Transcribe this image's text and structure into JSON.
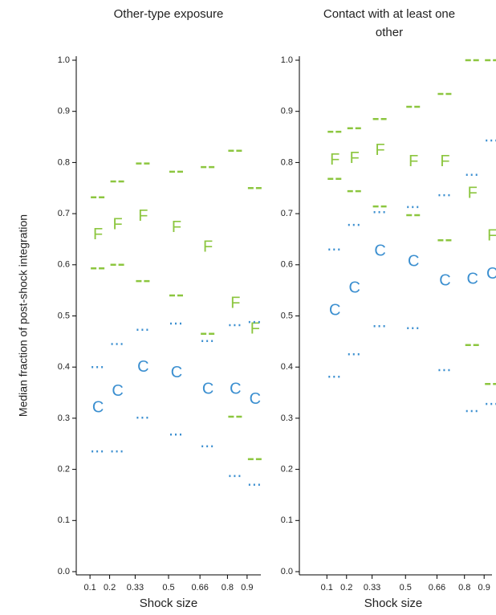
{
  "chart_data": [
    {
      "type": "scatter",
      "title": "Other-type exposure",
      "xlabel": "Shock size",
      "ylabel": "Median fraction of post-shock integration",
      "x": [
        0.1,
        0.2,
        0.33,
        0.5,
        0.66,
        0.8,
        0.9
      ],
      "xlim": [
        0.03,
        0.97
      ],
      "xticks": [
        0.1,
        0.2,
        0.33,
        0.5,
        0.66,
        0.8,
        0.9
      ],
      "ylim": [
        0,
        1.0
      ],
      "yticks": [
        {
          "value": 0,
          "label": "0.0"
        },
        0.1,
        0.2,
        0.3,
        0.4,
        0.5,
        0.6,
        0.7,
        0.8,
        0.9,
        {
          "value": 1.0,
          "label": "1.0"
        }
      ],
      "series": [
        {
          "marker": "F",
          "color": "#8cc63f",
          "values": [
            0.658,
            0.678,
            0.694,
            0.672,
            0.634,
            0.524,
            0.474
          ]
        },
        {
          "marker_style": "dashes",
          "color": "#8cc63f",
          "values": [
            0.732,
            0.763,
            0.798,
            0.782,
            0.791,
            0.823,
            0.75
          ]
        },
        {
          "marker_style": "dashes",
          "color": "#8cc63f",
          "values": [
            0.593,
            0.6,
            0.568,
            0.54,
            0.465,
            0.303,
            0.22
          ]
        },
        {
          "marker": "C",
          "color": "#3b8fd0",
          "values": [
            0.32,
            0.352,
            0.399,
            0.388,
            0.356,
            0.356,
            0.336
          ]
        },
        {
          "marker_style": "dots",
          "color": "#3b8fd0",
          "values": [
            0.4,
            0.445,
            0.473,
            0.485,
            0.451,
            0.482,
            0.488
          ]
        },
        {
          "marker_style": "dots",
          "color": "#3b8fd0",
          "values": [
            0.235,
            0.235,
            0.301,
            0.268,
            0.245,
            0.187,
            0.17
          ]
        }
      ]
    },
    {
      "type": "scatter",
      "title": "Contact with at least one other",
      "xlabel": "Shock size",
      "x": [
        0.1,
        0.2,
        0.33,
        0.5,
        0.66,
        0.8,
        0.9
      ],
      "xlim": [
        -0.04,
        0.94
      ],
      "xticks": [
        0.1,
        0.2,
        0.33,
        0.5,
        0.66,
        0.8,
        0.9
      ],
      "ylim": [
        0,
        1.0
      ],
      "yticks": [
        {
          "value": 0,
          "label": "0.0"
        },
        0.1,
        0.2,
        0.3,
        0.4,
        0.5,
        0.6,
        0.7,
        0.8,
        0.9,
        {
          "value": 1.0,
          "label": "1.0"
        }
      ],
      "series": [
        {
          "marker": "F",
          "color": "#8cc63f",
          "values": [
            0.804,
            0.807,
            0.823,
            0.801,
            0.801,
            0.739,
            0.656
          ]
        },
        {
          "marker_style": "dashes",
          "color": "#8cc63f",
          "values": [
            0.86,
            0.867,
            0.885,
            0.909,
            0.934,
            1.0,
            1.0
          ]
        },
        {
          "marker_style": "dashes",
          "color": "#8cc63f",
          "values": [
            0.768,
            0.744,
            0.714,
            0.697,
            0.648,
            0.443,
            0.367
          ]
        },
        {
          "marker": "C",
          "color": "#3b8fd0",
          "values": [
            0.51,
            0.554,
            0.626,
            0.606,
            0.568,
            0.571,
            0.581
          ]
        },
        {
          "marker_style": "dots",
          "color": "#3b8fd0",
          "values": [
            0.63,
            0.678,
            0.703,
            0.713,
            0.736,
            0.776,
            0.843
          ]
        },
        {
          "marker_style": "dots",
          "color": "#3b8fd0",
          "values": [
            0.381,
            0.425,
            0.48,
            0.476,
            0.394,
            0.314,
            0.328
          ]
        }
      ]
    }
  ]
}
